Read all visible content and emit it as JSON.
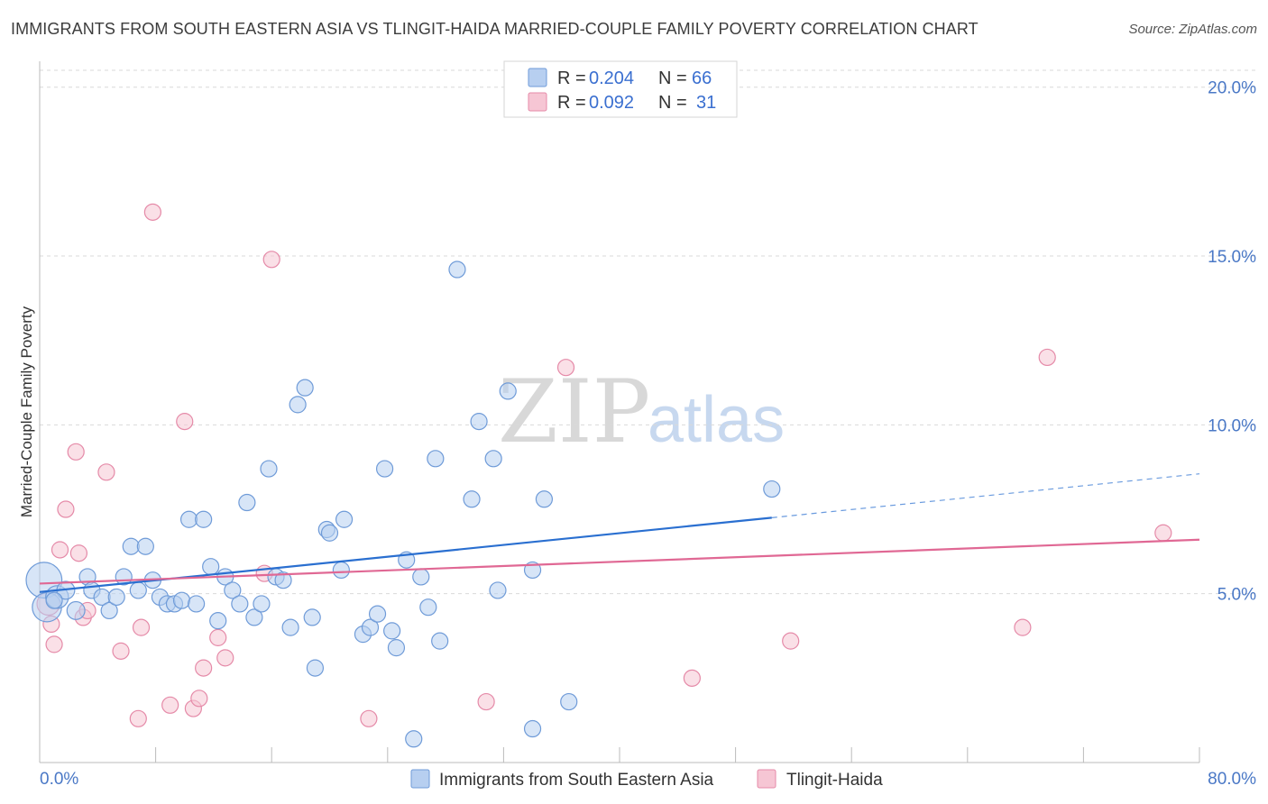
{
  "title": "IMMIGRANTS FROM SOUTH EASTERN ASIA VS TLINGIT-HAIDA MARRIED-COUPLE FAMILY POVERTY CORRELATION CHART",
  "source": "Source: ZipAtlas.com",
  "watermark": {
    "zip": "ZIP",
    "atlas": "atlas"
  },
  "colors": {
    "blue_fill": "#b7cff0",
    "blue_stroke": "#6f9bd8",
    "blue_line": "#2a6fd0",
    "pink_fill": "#f6c6d4",
    "pink_stroke": "#e58aa8",
    "pink_line": "#e06894",
    "tick_text": "#4a78c6",
    "grid": "#d9d9d9"
  },
  "legend": {
    "rows": [
      {
        "series": "blue",
        "r_label": "R = ",
        "r_value": "0.204",
        "n_label": "N = ",
        "n_value": "66"
      },
      {
        "series": "pink",
        "r_label": "R = ",
        "r_value": "0.092",
        "n_label": "N = ",
        "n_value": "31"
      }
    ]
  },
  "chart_data": {
    "type": "scatter",
    "title": "IMMIGRANTS FROM SOUTH EASTERN ASIA VS TLINGIT-HAIDA MARRIED-COUPLE FAMILY POVERTY CORRELATION CHART",
    "xlabel": "",
    "ylabel": "Married-Couple Family Poverty",
    "xlim": [
      0,
      80
    ],
    "ylim": [
      0,
      20.5
    ],
    "x_tick_labels": [
      "0.0%",
      "80.0%"
    ],
    "y_ticks": [
      5,
      10,
      15,
      20
    ],
    "y_tick_labels": [
      "5.0%",
      "10.0%",
      "15.0%",
      "20.0%"
    ],
    "x_minor_ticks": [
      8,
      16,
      24,
      32,
      40,
      48,
      56,
      64,
      72,
      80
    ],
    "grid": true,
    "legend_position": "top-center",
    "series": [
      {
        "name": "Immigrants from South Eastern Asia",
        "color": "blue",
        "R": 0.204,
        "N": 66,
        "trend": {
          "x0": 0,
          "y0": 5.05,
          "x1": 50.5,
          "y1": 7.25,
          "dash_to_x": 80,
          "dash_to_y": 8.55
        },
        "points": [
          [
            0.3,
            5.4,
            22
          ],
          [
            0.5,
            4.6,
            18
          ],
          [
            1.2,
            4.9,
            14
          ],
          [
            1.8,
            5.1,
            11
          ],
          [
            2.5,
            4.5,
            11
          ],
          [
            3.3,
            5.5,
            10
          ],
          [
            3.6,
            5.1,
            10
          ],
          [
            4.3,
            4.9,
            10
          ],
          [
            4.8,
            4.5,
            10
          ],
          [
            5.3,
            4.9,
            10
          ],
          [
            5.8,
            5.5,
            10
          ],
          [
            6.3,
            6.4,
            10
          ],
          [
            6.8,
            5.1,
            10
          ],
          [
            7.3,
            6.4,
            10
          ],
          [
            7.8,
            5.4,
            10
          ],
          [
            8.3,
            4.9,
            10
          ],
          [
            8.8,
            4.7,
            10
          ],
          [
            9.3,
            4.7,
            10
          ],
          [
            9.8,
            4.8,
            10
          ],
          [
            10.3,
            7.2,
            10
          ],
          [
            10.8,
            4.7,
            10
          ],
          [
            11.3,
            7.2,
            10
          ],
          [
            11.8,
            5.8,
            10
          ],
          [
            12.3,
            4.2,
            10
          ],
          [
            12.8,
            5.5,
            10
          ],
          [
            13.3,
            5.1,
            10
          ],
          [
            13.8,
            4.7,
            10
          ],
          [
            14.3,
            7.7,
            10
          ],
          [
            14.8,
            4.3,
            10
          ],
          [
            15.3,
            4.7,
            10
          ],
          [
            15.8,
            8.7,
            10
          ],
          [
            16.3,
            5.5,
            10
          ],
          [
            16.8,
            5.4,
            10
          ],
          [
            17.3,
            4.0,
            10
          ],
          [
            17.8,
            10.6,
            10
          ],
          [
            18.3,
            11.1,
            10
          ],
          [
            18.8,
            4.3,
            10
          ],
          [
            19.0,
            2.8,
            10
          ],
          [
            19.8,
            6.9,
            10
          ],
          [
            20.0,
            6.8,
            10
          ],
          [
            20.8,
            5.7,
            10
          ],
          [
            21.0,
            7.2,
            10
          ],
          [
            22.3,
            3.8,
            10
          ],
          [
            22.8,
            4.0,
            10
          ],
          [
            23.3,
            4.4,
            10
          ],
          [
            23.8,
            8.7,
            10
          ],
          [
            24.3,
            3.9,
            10
          ],
          [
            24.6,
            3.4,
            10
          ],
          [
            25.3,
            6.0,
            10
          ],
          [
            25.8,
            0.7,
            10
          ],
          [
            26.3,
            5.5,
            10
          ],
          [
            26.8,
            4.6,
            10
          ],
          [
            27.3,
            9.0,
            10
          ],
          [
            27.6,
            3.6,
            10
          ],
          [
            28.8,
            14.6,
            10
          ],
          [
            29.8,
            7.8,
            10
          ],
          [
            30.3,
            10.1,
            10
          ],
          [
            31.3,
            9.0,
            10
          ],
          [
            31.6,
            5.1,
            10
          ],
          [
            32.3,
            11.0,
            10
          ],
          [
            34.0,
            5.7,
            10
          ],
          [
            34.0,
            1.0,
            10
          ],
          [
            34.8,
            7.8,
            10
          ],
          [
            36.5,
            1.8,
            10
          ],
          [
            50.5,
            8.1,
            10
          ],
          [
            1.0,
            4.8,
            10
          ]
        ]
      },
      {
        "name": "Tlingit-Haida",
        "color": "pink",
        "R": 0.092,
        "N": 31,
        "trend": {
          "x0": 0,
          "y0": 5.3,
          "x1": 80,
          "y1": 6.6
        },
        "points": [
          [
            0.6,
            4.7,
            14
          ],
          [
            0.8,
            4.1,
            10
          ],
          [
            1.0,
            3.5,
            10
          ],
          [
            1.4,
            6.3,
            10
          ],
          [
            1.8,
            7.5,
            10
          ],
          [
            2.5,
            9.2,
            10
          ],
          [
            2.7,
            6.2,
            10
          ],
          [
            3.0,
            4.3,
            10
          ],
          [
            3.3,
            4.5,
            10
          ],
          [
            4.6,
            8.6,
            10
          ],
          [
            5.6,
            3.3,
            10
          ],
          [
            6.8,
            1.3,
            10
          ],
          [
            7.0,
            4.0,
            10
          ],
          [
            7.8,
            16.3,
            10
          ],
          [
            9.0,
            1.7,
            10
          ],
          [
            10.0,
            10.1,
            10
          ],
          [
            10.6,
            1.6,
            10
          ],
          [
            11.0,
            1.9,
            10
          ],
          [
            11.3,
            2.8,
            10
          ],
          [
            12.3,
            3.7,
            10
          ],
          [
            12.8,
            3.1,
            10
          ],
          [
            15.5,
            5.6,
            10
          ],
          [
            16.0,
            14.9,
            10
          ],
          [
            22.7,
            1.3,
            10
          ],
          [
            30.8,
            1.8,
            10
          ],
          [
            36.3,
            11.7,
            10
          ],
          [
            45.0,
            2.5,
            10
          ],
          [
            51.8,
            3.6,
            10
          ],
          [
            67.8,
            4.0,
            10
          ],
          [
            69.5,
            12.0,
            10
          ],
          [
            77.5,
            6.8,
            10
          ]
        ]
      }
    ]
  }
}
